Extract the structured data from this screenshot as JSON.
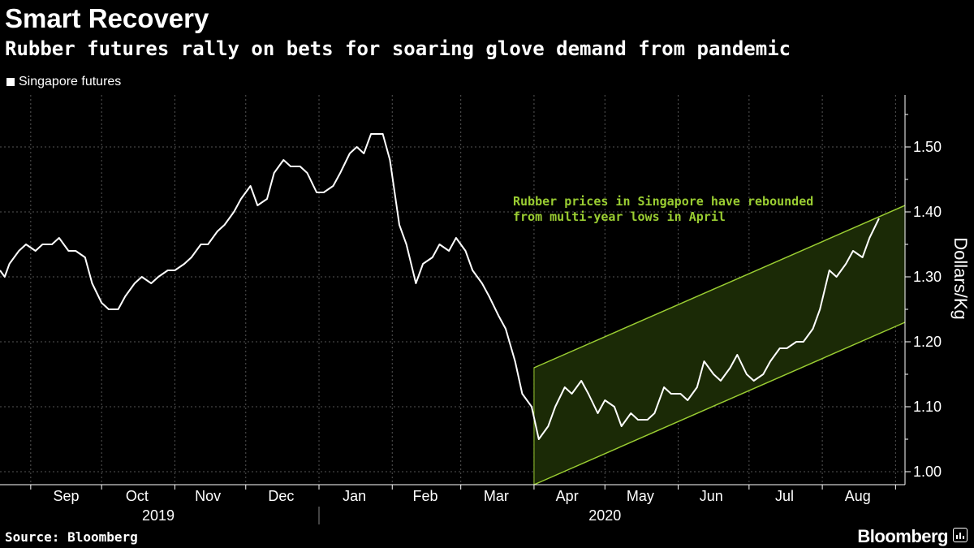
{
  "title": "Smart Recovery",
  "subtitle": "Rubber futures rally on bets for soaring glove demand from pandemic",
  "source": "Source: Bloomberg",
  "brand": "Bloomberg",
  "colors": {
    "line": "#ffffff",
    "annotation": "#9acd32",
    "channel_fill": "#1b2a06",
    "grid": "#555555"
  },
  "chart_data": {
    "type": "line",
    "title": "Smart Recovery",
    "subtitle": "Rubber futures rally on bets for soaring glove demand from pandemic",
    "xlabel": "",
    "ylabel": "Dollars/Kg",
    "ylim": [
      0.98,
      1.58
    ],
    "yticks": [
      1.0,
      1.1,
      1.2,
      1.3,
      1.4,
      1.5
    ],
    "ytick_labels": [
      "1.00",
      "1.10",
      "1.20",
      "1.30",
      "1.40",
      "1.50"
    ],
    "grid": true,
    "legend": "top-left",
    "xlim": [
      "2019-08-19",
      "2020-09-05"
    ],
    "month_labels": [
      {
        "label": "Sep",
        "date": "2019-09-16"
      },
      {
        "label": "Oct",
        "date": "2019-10-16"
      },
      {
        "label": "Nov",
        "date": "2019-11-15"
      },
      {
        "label": "Dec",
        "date": "2019-12-16"
      },
      {
        "label": "Jan",
        "date": "2020-01-16"
      },
      {
        "label": "Feb",
        "date": "2020-02-15"
      },
      {
        "label": "Mar",
        "date": "2020-03-16"
      },
      {
        "label": "Apr",
        "date": "2020-04-15"
      },
      {
        "label": "May",
        "date": "2020-05-16"
      },
      {
        "label": "Jun",
        "date": "2020-06-15"
      },
      {
        "label": "Jul",
        "date": "2020-07-16"
      },
      {
        "label": "Aug",
        "date": "2020-08-16"
      }
    ],
    "year_labels": [
      {
        "label": "2019",
        "date": "2019-10-25"
      },
      {
        "label": "2020",
        "date": "2020-05-01"
      }
    ],
    "series": [
      {
        "name": "Singapore futures",
        "points": [
          [
            "2019-08-19",
            1.31
          ],
          [
            "2019-08-21",
            1.3
          ],
          [
            "2019-08-23",
            1.32
          ],
          [
            "2019-08-27",
            1.34
          ],
          [
            "2019-08-30",
            1.35
          ],
          [
            "2019-09-03",
            1.34
          ],
          [
            "2019-09-06",
            1.35
          ],
          [
            "2019-09-10",
            1.35
          ],
          [
            "2019-09-13",
            1.36
          ],
          [
            "2019-09-17",
            1.34
          ],
          [
            "2019-09-20",
            1.34
          ],
          [
            "2019-09-24",
            1.33
          ],
          [
            "2019-09-27",
            1.29
          ],
          [
            "2019-10-01",
            1.26
          ],
          [
            "2019-10-04",
            1.25
          ],
          [
            "2019-10-08",
            1.25
          ],
          [
            "2019-10-11",
            1.27
          ],
          [
            "2019-10-15",
            1.29
          ],
          [
            "2019-10-18",
            1.3
          ],
          [
            "2019-10-22",
            1.29
          ],
          [
            "2019-10-25",
            1.3
          ],
          [
            "2019-10-29",
            1.31
          ],
          [
            "2019-11-01",
            1.31
          ],
          [
            "2019-11-05",
            1.32
          ],
          [
            "2019-11-08",
            1.33
          ],
          [
            "2019-11-12",
            1.35
          ],
          [
            "2019-11-15",
            1.35
          ],
          [
            "2019-11-19",
            1.37
          ],
          [
            "2019-11-22",
            1.38
          ],
          [
            "2019-11-26",
            1.4
          ],
          [
            "2019-11-29",
            1.42
          ],
          [
            "2019-12-03",
            1.44
          ],
          [
            "2019-12-06",
            1.41
          ],
          [
            "2019-12-10",
            1.42
          ],
          [
            "2019-12-13",
            1.46
          ],
          [
            "2019-12-17",
            1.48
          ],
          [
            "2019-12-20",
            1.47
          ],
          [
            "2019-12-24",
            1.47
          ],
          [
            "2019-12-27",
            1.46
          ],
          [
            "2019-12-31",
            1.43
          ],
          [
            "2020-01-03",
            1.43
          ],
          [
            "2020-01-07",
            1.44
          ],
          [
            "2020-01-10",
            1.46
          ],
          [
            "2020-01-14",
            1.49
          ],
          [
            "2020-01-17",
            1.5
          ],
          [
            "2020-01-20",
            1.49
          ],
          [
            "2020-01-23",
            1.52
          ],
          [
            "2020-01-28",
            1.52
          ],
          [
            "2020-01-31",
            1.48
          ],
          [
            "2020-02-04",
            1.38
          ],
          [
            "2020-02-07",
            1.35
          ],
          [
            "2020-02-11",
            1.29
          ],
          [
            "2020-02-14",
            1.32
          ],
          [
            "2020-02-18",
            1.33
          ],
          [
            "2020-02-21",
            1.35
          ],
          [
            "2020-02-25",
            1.34
          ],
          [
            "2020-02-28",
            1.36
          ],
          [
            "2020-03-03",
            1.34
          ],
          [
            "2020-03-06",
            1.31
          ],
          [
            "2020-03-10",
            1.29
          ],
          [
            "2020-03-13",
            1.27
          ],
          [
            "2020-03-17",
            1.24
          ],
          [
            "2020-03-20",
            1.22
          ],
          [
            "2020-03-24",
            1.17
          ],
          [
            "2020-03-27",
            1.12
          ],
          [
            "2020-03-31",
            1.1
          ],
          [
            "2020-04-03",
            1.05
          ],
          [
            "2020-04-07",
            1.07
          ],
          [
            "2020-04-10",
            1.1
          ],
          [
            "2020-04-14",
            1.13
          ],
          [
            "2020-04-17",
            1.12
          ],
          [
            "2020-04-21",
            1.14
          ],
          [
            "2020-04-24",
            1.12
          ],
          [
            "2020-04-28",
            1.09
          ],
          [
            "2020-05-01",
            1.11
          ],
          [
            "2020-05-05",
            1.1
          ],
          [
            "2020-05-08",
            1.07
          ],
          [
            "2020-05-12",
            1.09
          ],
          [
            "2020-05-15",
            1.08
          ],
          [
            "2020-05-19",
            1.08
          ],
          [
            "2020-05-22",
            1.09
          ],
          [
            "2020-05-26",
            1.13
          ],
          [
            "2020-05-29",
            1.12
          ],
          [
            "2020-06-02",
            1.12
          ],
          [
            "2020-06-05",
            1.11
          ],
          [
            "2020-06-09",
            1.13
          ],
          [
            "2020-06-12",
            1.17
          ],
          [
            "2020-06-16",
            1.15
          ],
          [
            "2020-06-19",
            1.14
          ],
          [
            "2020-06-23",
            1.16
          ],
          [
            "2020-06-26",
            1.18
          ],
          [
            "2020-06-30",
            1.15
          ],
          [
            "2020-07-03",
            1.14
          ],
          [
            "2020-07-07",
            1.15
          ],
          [
            "2020-07-10",
            1.17
          ],
          [
            "2020-07-14",
            1.19
          ],
          [
            "2020-07-17",
            1.19
          ],
          [
            "2020-07-21",
            1.2
          ],
          [
            "2020-07-24",
            1.2
          ],
          [
            "2020-07-28",
            1.22
          ],
          [
            "2020-07-31",
            1.25
          ],
          [
            "2020-08-04",
            1.31
          ],
          [
            "2020-08-07",
            1.3
          ],
          [
            "2020-08-11",
            1.32
          ],
          [
            "2020-08-14",
            1.34
          ],
          [
            "2020-08-18",
            1.33
          ],
          [
            "2020-08-21",
            1.36
          ],
          [
            "2020-08-25",
            1.39
          ]
        ]
      }
    ],
    "annotation": {
      "lines": [
        "Rubber prices in Singapore have rebounded",
        "from multi-year lows in April"
      ],
      "channel": {
        "start_date": "2020-04-01",
        "end_date": "2020-09-05",
        "upper": [
          1.16,
          1.41
        ],
        "lower": [
          0.98,
          1.23
        ]
      }
    }
  }
}
